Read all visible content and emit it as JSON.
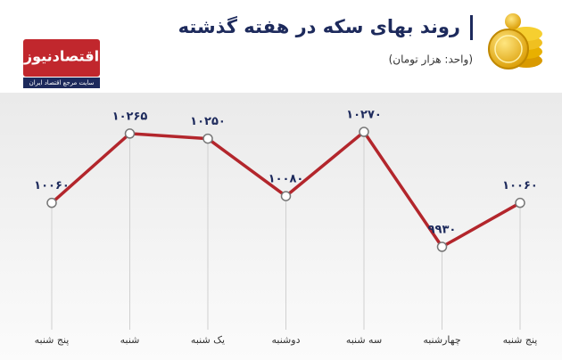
{
  "logo": {
    "name": "اقتصادنیوز",
    "tagline": "سایت مرجع اقتصاد ایران"
  },
  "chart_data": {
    "type": "line",
    "title": "روند بهای سکه در هفته گذشته",
    "subtitle": "(واحد: هزار تومان)",
    "categories": [
      "پنج شنبه",
      "شنبه",
      "یک شنبه",
      "دوشنبه",
      "سه شنبه",
      "چهارشنبه",
      "پنج شنبه"
    ],
    "values": [
      10060,
      10265,
      10250,
      10080,
      10270,
      9930,
      10060
    ],
    "value_labels": [
      "۱۰۰۶۰",
      "۱۰۲۶۵",
      "۱۰۲۵۰",
      "۱۰۰۸۰",
      "۱۰۲۷۰",
      "۹۹۳۰",
      "۱۰۰۶۰"
    ],
    "color": "#b3262c"
  }
}
